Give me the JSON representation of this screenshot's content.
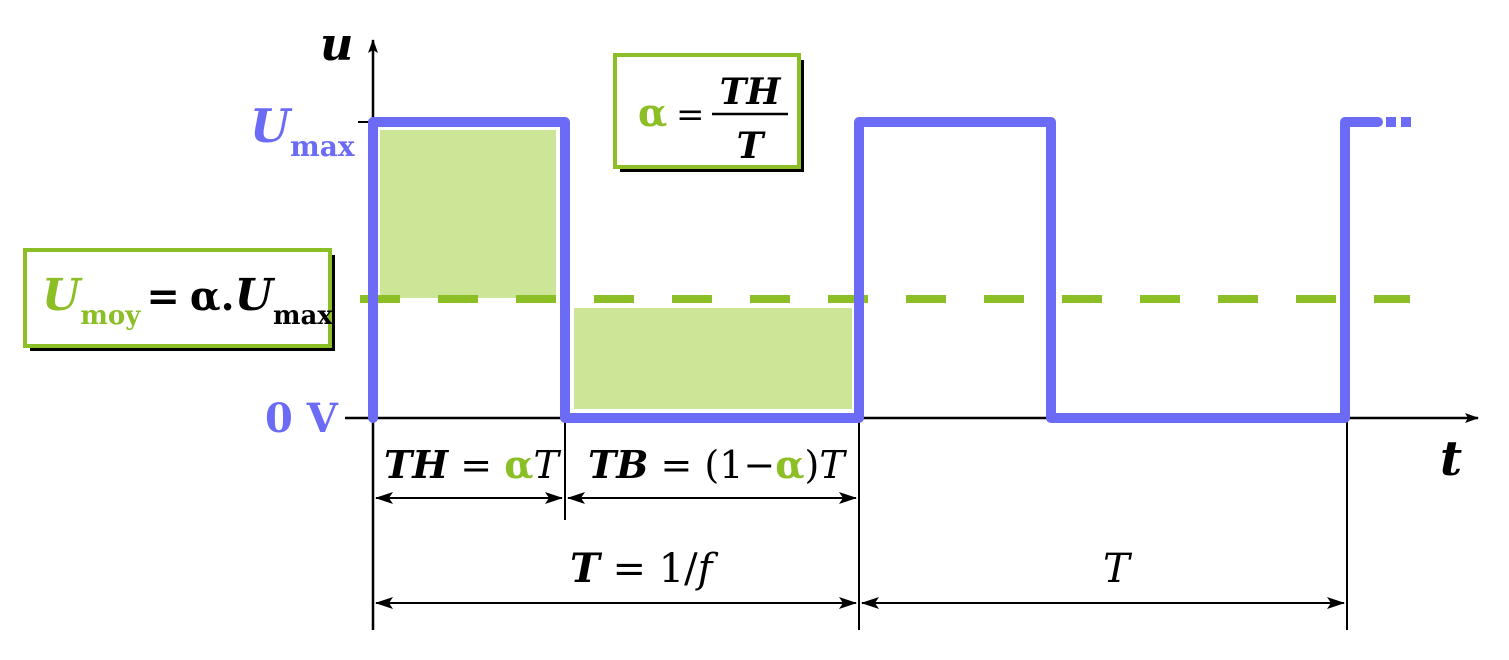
{
  "colors": {
    "signal": "#6b6bf5",
    "accent_green": "#8cbf26",
    "fill_green": "#cde596",
    "axis": "#000000"
  },
  "axes": {
    "y_label": "u",
    "x_label": "t"
  },
  "levels": {
    "umax_U": "U",
    "umax_sub": "max",
    "zero_label": "0 V"
  },
  "formula_alpha": {
    "alpha": "α",
    "equals": "=",
    "numerator": "TH",
    "denominator": "T"
  },
  "formula_umoy": {
    "U": "U",
    "sub": "moy",
    "equals": "=",
    "alpha": "α",
    "dot": ".",
    "U2": "U",
    "sub2": "max"
  },
  "th_label": {
    "TH": "TH",
    "equals": " = ",
    "alpha": "α",
    "T": "T"
  },
  "tb_label": {
    "TB": "TB",
    "equals": " = ",
    "open": "(1−",
    "alpha": "α",
    "close": ")",
    "T": "T"
  },
  "period_label": {
    "T": "T",
    "rest": " = 1/",
    "f": "f"
  },
  "period2_label": "T",
  "ellipsis": "…"
}
